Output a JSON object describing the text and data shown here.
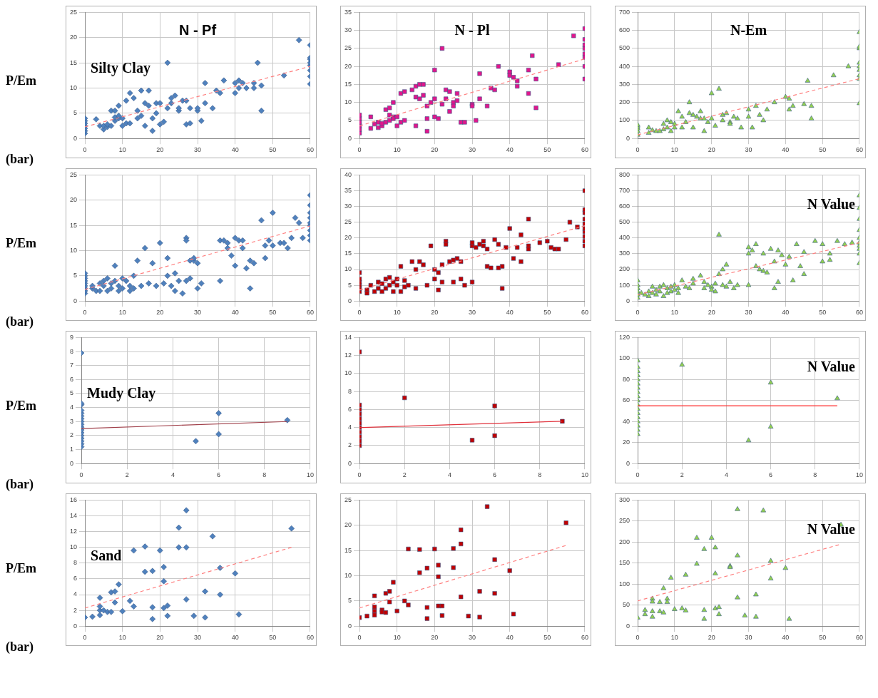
{
  "chart_data": [
    {
      "type": "scatter",
      "title": "N - Pf",
      "ylabel": "P/Em (bar)",
      "annotations": [
        "Silty Clay"
      ],
      "xlim": [
        0,
        60
      ],
      "xticks": [
        0,
        10,
        20,
        30,
        40,
        50,
        60
      ],
      "ylim": [
        0,
        25
      ],
      "yticks": [
        0,
        5,
        10,
        15,
        20,
        25
      ],
      "grid": true,
      "series": [
        {
          "type": "scatter",
          "color": "#4f81bd",
          "marker": "diamond",
          "x": [
            0,
            0,
            0,
            0,
            0,
            0,
            0,
            3,
            4,
            5,
            5,
            6,
            6,
            7,
            7,
            8,
            8,
            8,
            9,
            9,
            9,
            10,
            10,
            11,
            11,
            12,
            12,
            13,
            14,
            14,
            15,
            15,
            16,
            16,
            17,
            17,
            18,
            18,
            19,
            19,
            20,
            20,
            21,
            22,
            22,
            23,
            23,
            24,
            25,
            25,
            26,
            27,
            27,
            28,
            28,
            30,
            30,
            31,
            32,
            32,
            34,
            35,
            36,
            37,
            40,
            40,
            41,
            41,
            42,
            43,
            45,
            45,
            46,
            47,
            47,
            53,
            57,
            60,
            60,
            60,
            60,
            60,
            60,
            60,
            60
          ],
          "values": [
            1,
            1.5,
            2,
            2.5,
            3,
            3.5,
            4,
            3.8,
            2.5,
            1.8,
            2.5,
            2.3,
            2.8,
            2.5,
            5.5,
            3.5,
            4.2,
            5.5,
            4,
            4.5,
            6.5,
            2.5,
            4,
            3,
            7.5,
            3,
            9,
            8,
            4,
            5.5,
            9.5,
            4.5,
            2.5,
            7,
            6.5,
            9.5,
            4,
            1.5,
            5,
            7,
            2.8,
            7,
            3.3,
            15,
            6,
            7,
            8,
            8.5,
            5.5,
            6,
            7.5,
            2.8,
            7.5,
            3,
            6,
            5.5,
            6,
            3.5,
            11,
            7,
            6,
            9.5,
            9,
            11.5,
            9,
            11,
            10,
            11.5,
            11,
            10,
            10,
            11,
            15,
            5.5,
            10.5,
            12.5,
            19.5,
            10.8,
            12.3,
            13.5,
            14.5,
            15,
            15.7,
            16,
            18.5
          ]
        },
        {
          "type": "line",
          "color": "#ff8080",
          "line_style": "dashed",
          "marker": "none",
          "x": [
            0,
            60
          ],
          "values": [
            2.3,
            14.3
          ]
        }
      ]
    },
    {
      "type": "scatter",
      "title": "N - Pl",
      "xlim": [
        0,
        60
      ],
      "xticks": [
        0,
        10,
        20,
        30,
        40,
        50,
        60
      ],
      "ylim": [
        0,
        35
      ],
      "yticks": [
        0,
        5,
        10,
        15,
        20,
        25,
        30,
        35
      ],
      "grid": true,
      "series": [
        {
          "type": "scatter",
          "color": "#e0168c",
          "marker": "square",
          "x": [
            0,
            0,
            0,
            0,
            0,
            0,
            3,
            3,
            4,
            5,
            5,
            6,
            6,
            7,
            7,
            8,
            8,
            8,
            9,
            9,
            9,
            10,
            10,
            11,
            11,
            12,
            12,
            14,
            15,
            15,
            15,
            16,
            16,
            17,
            17,
            18,
            18,
            18,
            19,
            20,
            20,
            20,
            21,
            22,
            22,
            23,
            23,
            24,
            24,
            25,
            25,
            26,
            26,
            27,
            28,
            30,
            30,
            31,
            32,
            32,
            34,
            35,
            36,
            37,
            40,
            40,
            41,
            42,
            42,
            45,
            45,
            46,
            47,
            47,
            53,
            57,
            60,
            60,
            60,
            60,
            60,
            60,
            60,
            60
          ],
          "values": [
            1.5,
            2.5,
            3.5,
            4.5,
            5.5,
            6.5,
            6,
            2.8,
            4,
            3,
            4.5,
            3.5,
            4.2,
            4.5,
            8,
            5,
            6.5,
            8.5,
            6,
            5.5,
            10,
            3.5,
            6,
            4.5,
            12.5,
            5,
            13,
            13.5,
            3.5,
            11.5,
            14.5,
            11,
            15,
            12,
            15,
            2,
            9,
            5.5,
            10,
            19,
            11,
            6,
            5.5,
            25,
            9.5,
            13.5,
            11,
            13,
            7.5,
            10,
            9,
            10.5,
            12.5,
            4.5,
            4.5,
            9.5,
            9,
            5,
            18,
            11,
            9,
            14,
            13.5,
            20,
            18.5,
            17.5,
            17,
            14.5,
            16,
            19,
            12.5,
            23,
            8.5,
            16.5,
            20.5,
            28.5,
            16.5,
            20,
            22.5,
            23.5,
            25,
            26,
            27.5,
            30.5
          ]
        },
        {
          "type": "line",
          "color": "#ff8080",
          "line_style": "dashed",
          "marker": "none",
          "x": [
            0,
            60
          ],
          "values": [
            3.5,
            22.1
          ]
        }
      ]
    },
    {
      "type": "scatter",
      "title": "N-Em",
      "xlim": [
        0,
        60
      ],
      "xticks": [
        0,
        10,
        20,
        30,
        40,
        50,
        60
      ],
      "ylim": [
        0,
        700
      ],
      "yticks": [
        0,
        100,
        200,
        300,
        400,
        500,
        600,
        700
      ],
      "grid": true,
      "series": [
        {
          "type": "scatter",
          "color": "#92d050",
          "marker": "triangle",
          "x": [
            0,
            0,
            0,
            0,
            0,
            3,
            3,
            4,
            5,
            6,
            7,
            7,
            8,
            8,
            9,
            9,
            10,
            10,
            11,
            12,
            12,
            13,
            14,
            14,
            15,
            15,
            16,
            17,
            17,
            18,
            18,
            19,
            20,
            20,
            21,
            22,
            23,
            23,
            24,
            25,
            25,
            26,
            27,
            28,
            30,
            30,
            31,
            32,
            33,
            34,
            35,
            37,
            40,
            41,
            41,
            42,
            45,
            46,
            47,
            47,
            53,
            57,
            60,
            60,
            60,
            60,
            60,
            60,
            60,
            60,
            60
          ],
          "values": [
            20,
            40,
            55,
            65,
            75,
            60,
            30,
            45,
            40,
            40,
            50,
            80,
            100,
            60,
            90,
            40,
            60,
            80,
            150,
            120,
            60,
            90,
            200,
            140,
            130,
            60,
            120,
            110,
            150,
            40,
            110,
            90,
            110,
            250,
            70,
            275,
            130,
            100,
            140,
            90,
            80,
            120,
            110,
            60,
            160,
            120,
            60,
            180,
            130,
            100,
            160,
            200,
            230,
            220,
            160,
            180,
            190,
            320,
            180,
            110,
            350,
            400,
            195,
            330,
            350,
            380,
            400,
            420,
            500,
            510,
            590
          ]
        },
        {
          "type": "line",
          "color": "#ff8080",
          "line_style": "dashed",
          "marker": "none",
          "x": [
            0,
            60
          ],
          "values": [
            20,
            332
          ]
        }
      ]
    },
    {
      "type": "scatter",
      "ylabel": "P/Em (bar)",
      "xlim": [
        0,
        60
      ],
      "xticks": [
        0,
        10,
        20,
        30,
        40,
        50,
        60
      ],
      "ylim": [
        0,
        25
      ],
      "yticks": [
        0,
        5,
        10,
        15,
        20,
        25
      ],
      "grid": true,
      "series": [
        {
          "type": "scatter",
          "color": "#4f81bd",
          "marker": "diamond",
          "x": [
            0,
            0,
            0,
            0,
            0,
            0,
            0,
            0,
            0,
            2,
            2,
            3,
            4,
            4,
            5,
            5,
            6,
            6,
            7,
            7,
            8,
            8,
            9,
            9,
            10,
            10,
            11,
            12,
            12,
            13,
            13,
            14,
            15,
            16,
            17,
            18,
            19,
            20,
            21,
            22,
            22,
            23,
            24,
            24,
            25,
            26,
            27,
            27,
            27,
            28,
            28,
            29,
            29,
            30,
            30,
            31,
            36,
            36,
            37,
            38,
            38,
            39,
            40,
            40,
            41,
            42,
            42,
            43,
            44,
            44,
            45,
            47,
            48,
            48,
            49,
            50,
            50,
            52,
            53,
            54,
            55,
            56,
            57,
            58,
            60,
            60,
            60,
            60,
            60,
            60,
            60,
            60,
            60
          ],
          "values": [
            1.5,
            2,
            2.5,
            3,
            3.5,
            4,
            4.5,
            5,
            5.5,
            2.5,
            3,
            2,
            3.5,
            2,
            4,
            3,
            4.5,
            2,
            3.5,
            2.5,
            4,
            7,
            2,
            3,
            4.5,
            2.5,
            4,
            2,
            3,
            2.5,
            5,
            8,
            3,
            10.5,
            3.5,
            7.5,
            3,
            11.5,
            3.5,
            5,
            8.5,
            3,
            2,
            5.5,
            4,
            1.5,
            4,
            12.5,
            12,
            8,
            4.5,
            8,
            8.5,
            2.5,
            7.5,
            3.5,
            4,
            12,
            12,
            10.5,
            11.5,
            9,
            12.5,
            7,
            12,
            10.5,
            12,
            6.5,
            2.5,
            8,
            7.5,
            16,
            11,
            8.5,
            12,
            17.5,
            11,
            11.5,
            11.5,
            10.5,
            12.5,
            16.5,
            15.5,
            12.5,
            12,
            13,
            14,
            15,
            15.5,
            16.5,
            17.5,
            19,
            21
          ]
        },
        {
          "type": "line",
          "color": "#ff8080",
          "line_style": "dashed",
          "marker": "none",
          "x": [
            0,
            60
          ],
          "values": [
            2.3,
            14.9
          ]
        }
      ]
    },
    {
      "type": "scatter",
      "xlim": [
        0,
        60
      ],
      "xticks": [
        0,
        10,
        20,
        30,
        40,
        50,
        60
      ],
      "ylim": [
        0,
        40
      ],
      "yticks": [
        0,
        5,
        10,
        15,
        20,
        25,
        30,
        35,
        40
      ],
      "grid": true,
      "series": [
        {
          "type": "scatter",
          "color": "#c00000",
          "marker": "square",
          "x": [
            0,
            0,
            0,
            0,
            0,
            0,
            2,
            2,
            3,
            4,
            5,
            5,
            6,
            6,
            7,
            7,
            8,
            8,
            9,
            9,
            10,
            10,
            11,
            11,
            12,
            12,
            13,
            14,
            15,
            15,
            16,
            17,
            18,
            19,
            20,
            20,
            21,
            21,
            22,
            22,
            23,
            23,
            24,
            25,
            25,
            26,
            27,
            27,
            28,
            30,
            30,
            30,
            31,
            32,
            33,
            33,
            34,
            34,
            35,
            36,
            37,
            37,
            38,
            38,
            39,
            40,
            41,
            42,
            43,
            43,
            45,
            45,
            45,
            48,
            50,
            51,
            52,
            53,
            55,
            56,
            58,
            60,
            60,
            60,
            60,
            60,
            60,
            60,
            60,
            60,
            60
          ],
          "values": [
            3,
            4,
            5,
            6,
            7,
            9,
            3.5,
            2.5,
            5,
            3,
            4,
            6,
            3,
            5.5,
            7,
            4,
            5,
            7.5,
            3,
            6,
            5,
            7,
            3,
            11,
            4.5,
            6.5,
            5,
            12.5,
            4,
            10,
            12.5,
            11.5,
            5,
            17.5,
            10,
            7,
            9,
            3.5,
            6,
            11.5,
            19,
            18,
            12.5,
            13,
            6,
            13.5,
            7,
            12.5,
            5,
            6,
            17.5,
            18.5,
            17,
            18,
            17.5,
            19,
            16.5,
            11,
            10.5,
            19.5,
            18,
            10.5,
            4,
            11,
            17,
            23,
            13.5,
            17,
            12.5,
            21,
            26,
            17.5,
            16.5,
            18.5,
            19,
            17,
            16.5,
            16.5,
            19.5,
            25,
            23.5,
            17.5,
            19,
            20.5,
            22,
            23,
            24.5,
            26,
            28,
            29,
            35
          ]
        },
        {
          "type": "line",
          "color": "#ff8080",
          "line_style": "dashed",
          "marker": "none",
          "x": [
            0,
            60
          ],
          "values": [
            3.5,
            23.9
          ]
        }
      ]
    },
    {
      "type": "scatter",
      "annotations": [
        "N Value"
      ],
      "xlim": [
        0,
        60
      ],
      "xticks": [
        0,
        10,
        20,
        30,
        40,
        50,
        60
      ],
      "ylim": [
        0,
        800
      ],
      "yticks": [
        0,
        100,
        200,
        300,
        400,
        500,
        600,
        700,
        800
      ],
      "grid": true,
      "series": [
        {
          "type": "scatter",
          "color": "#92d050",
          "marker": "triangle",
          "x": [
            0,
            0,
            0,
            0,
            0,
            0,
            1,
            2,
            3,
            3,
            4,
            4,
            5,
            5,
            6,
            6,
            7,
            7,
            8,
            8,
            9,
            9,
            10,
            10,
            11,
            11,
            12,
            13,
            14,
            15,
            15,
            17,
            18,
            18,
            19,
            20,
            20,
            21,
            21,
            22,
            22,
            23,
            23,
            24,
            24,
            25,
            26,
            27,
            30,
            30,
            30,
            31,
            32,
            32,
            33,
            34,
            34,
            35,
            36,
            37,
            37,
            38,
            38,
            39,
            40,
            41,
            42,
            43,
            44,
            45,
            45,
            48,
            50,
            50,
            52,
            52,
            54,
            56,
            58,
            60,
            60,
            60,
            60,
            60,
            60,
            60,
            60,
            60,
            60
          ],
          "values": [
            20,
            40,
            60,
            80,
            100,
            130,
            50,
            40,
            30,
            60,
            50,
            90,
            70,
            40,
            90,
            60,
            100,
            30,
            80,
            50,
            90,
            60,
            100,
            70,
            80,
            50,
            130,
            90,
            80,
            110,
            140,
            160,
            120,
            80,
            100,
            90,
            70,
            60,
            110,
            170,
            420,
            200,
            100,
            230,
            90,
            120,
            80,
            100,
            100,
            340,
            300,
            320,
            220,
            360,
            200,
            300,
            190,
            180,
            330,
            80,
            250,
            120,
            320,
            290,
            230,
            280,
            130,
            360,
            220,
            170,
            310,
            380,
            250,
            360,
            300,
            260,
            380,
            360,
            370,
            240,
            300,
            330,
            350,
            370,
            400,
            450,
            520,
            590,
            670
          ]
        },
        {
          "type": "line",
          "color": "#ff8080",
          "line_style": "dashed",
          "marker": "none",
          "x": [
            0,
            60
          ],
          "values": [
            40,
            370
          ]
        }
      ]
    },
    {
      "type": "scatter",
      "ylabel": "P/Em (bar)",
      "annotations": [
        "Mudy Clay"
      ],
      "xlim": [
        0,
        10
      ],
      "xticks": [
        0,
        2,
        4,
        6,
        8,
        10
      ],
      "ylim": [
        0,
        9
      ],
      "yticks": [
        0,
        1,
        2,
        3,
        4,
        5,
        6,
        7,
        8,
        9
      ],
      "grid": true,
      "series": [
        {
          "type": "scatter",
          "color": "#4f81bd",
          "marker": "diamond",
          "x": [
            0,
            0,
            0,
            0,
            0,
            0,
            0,
            0,
            0,
            0,
            0,
            0,
            0,
            0,
            0,
            0,
            0,
            5,
            6,
            6,
            9
          ],
          "values": [
            1.2,
            1.4,
            1.6,
            1.8,
            2,
            2.2,
            2.4,
            2.6,
            2.8,
            3,
            3.2,
            3.4,
            3.6,
            3.8,
            4.2,
            4.3,
            7.9,
            1.6,
            3.6,
            2.1,
            3.1
          ]
        },
        {
          "type": "line",
          "color": "#a0404a",
          "line_style": "solid",
          "marker": "none",
          "x": [
            0,
            9
          ],
          "values": [
            2.5,
            3
          ]
        }
      ]
    },
    {
      "type": "scatter",
      "xlim": [
        0,
        10
      ],
      "xticks": [
        0,
        2,
        4,
        6,
        8,
        10
      ],
      "ylim": [
        0,
        14
      ],
      "yticks": [
        0,
        2,
        4,
        6,
        8,
        10,
        12,
        14
      ],
      "grid": true,
      "series": [
        {
          "type": "scatter",
          "color": "#c00000",
          "marker": "square",
          "x": [
            0,
            0,
            0,
            0,
            0,
            0,
            0,
            0,
            0,
            0,
            0,
            2,
            5,
            6,
            6,
            9
          ],
          "values": [
            2,
            2.5,
            3,
            3.5,
            4,
            4.5,
            5,
            5.5,
            6,
            6.5,
            12.4,
            7.3,
            2.6,
            6.4,
            3.1,
            4.7
          ]
        },
        {
          "type": "line",
          "color": "#e0303a",
          "line_style": "solid",
          "marker": "none",
          "x": [
            0,
            9
          ],
          "values": [
            4,
            4.7
          ]
        }
      ]
    },
    {
      "type": "scatter",
      "annotations": [
        "N Value"
      ],
      "xlim": [
        0,
        10
      ],
      "xticks": [
        0,
        2,
        4,
        6,
        8,
        10
      ],
      "ylim": [
        0,
        120
      ],
      "yticks": [
        0,
        20,
        40,
        60,
        80,
        100,
        120
      ],
      "grid": true,
      "series": [
        {
          "type": "scatter",
          "color": "#92d050",
          "marker": "triangle",
          "x": [
            0,
            0,
            0,
            0,
            0,
            0,
            0,
            0,
            0,
            0,
            0,
            0,
            0,
            0,
            0,
            0,
            0,
            0,
            2,
            5,
            6,
            6,
            9
          ],
          "values": [
            28,
            32,
            36,
            40,
            44,
            48,
            52,
            56,
            60,
            64,
            68,
            72,
            76,
            80,
            84,
            88,
            92,
            98,
            94,
            22,
            77,
            35,
            62
          ]
        },
        {
          "type": "line",
          "color": "#ff3030",
          "line_style": "solid",
          "marker": "none",
          "x": [
            0,
            9
          ],
          "values": [
            55,
            55
          ]
        }
      ]
    },
    {
      "type": "scatter",
      "ylabel": "P/Em (bar)",
      "annotations": [
        "Sand"
      ],
      "xlim": [
        0,
        60
      ],
      "xticks": [
        0,
        10,
        20,
        30,
        40,
        50,
        60
      ],
      "ylim": [
        0,
        16
      ],
      "yticks": [
        0,
        2,
        4,
        6,
        8,
        10,
        12,
        14,
        16
      ],
      "grid": true,
      "series": [
        {
          "type": "scatter",
          "color": "#4f81bd",
          "marker": "diamond",
          "x": [
            0,
            2,
            4,
            4,
            4,
            4,
            5,
            6,
            7,
            7,
            8,
            8,
            9,
            10,
            12,
            13,
            13,
            16,
            16,
            18,
            18,
            18,
            20,
            21,
            21,
            21,
            22,
            22,
            25,
            25,
            27,
            27,
            27,
            29,
            32,
            32,
            34,
            36,
            36,
            40,
            41,
            55
          ],
          "values": [
            1.1,
            1.2,
            1.4,
            2,
            2.5,
            3.6,
            2,
            1.8,
            4.3,
            1.8,
            4.4,
            3,
            5.3,
            1.9,
            3.2,
            2.5,
            9.6,
            10.1,
            6.9,
            7,
            2.4,
            0.9,
            9.6,
            7.5,
            5.7,
            2.3,
            2.6,
            1.3,
            12.5,
            10,
            14.7,
            10,
            3.4,
            1.3,
            4.4,
            1.1,
            11.4,
            7.4,
            4,
            6.7,
            1.5,
            12.4
          ]
        },
        {
          "type": "line",
          "color": "#ff8080",
          "line_style": "dashed",
          "marker": "none",
          "x": [
            0,
            55
          ],
          "values": [
            2.3,
            10
          ]
        }
      ]
    },
    {
      "type": "scatter",
      "xlim": [
        0,
        60
      ],
      "xticks": [
        0,
        10,
        20,
        30,
        40,
        50,
        60
      ],
      "ylim": [
        0,
        25
      ],
      "yticks": [
        0,
        5,
        10,
        15,
        20,
        25
      ],
      "grid": true,
      "series": [
        {
          "type": "scatter",
          "color": "#c00000",
          "marker": "square",
          "x": [
            0,
            2,
            4,
            4,
            4,
            4,
            6,
            6,
            7,
            7,
            8,
            8,
            9,
            10,
            12,
            13,
            13,
            16,
            16,
            18,
            18,
            18,
            20,
            21,
            21,
            21,
            22,
            22,
            25,
            25,
            27,
            27,
            27,
            29,
            32,
            32,
            34,
            36,
            36,
            40,
            41,
            55
          ],
          "values": [
            1.7,
            2,
            6,
            3.8,
            3,
            2.2,
            3.2,
            2.8,
            6.5,
            2.7,
            6.9,
            4.8,
            8.7,
            3,
            5,
            15.3,
            4.2,
            15.2,
            10.6,
            11.5,
            3.7,
            1.5,
            15.3,
            12.1,
            9.8,
            4,
            4,
            2.1,
            15.4,
            11.6,
            19.1,
            16.3,
            5.8,
            2,
            6.9,
            1.8,
            23.7,
            13.2,
            6.5,
            11,
            2.4,
            20.5
          ]
        },
        {
          "type": "line",
          "color": "#ff8080",
          "line_style": "dashed",
          "marker": "none",
          "x": [
            0,
            55
          ],
          "values": [
            3.6,
            16
          ]
        }
      ]
    },
    {
      "type": "scatter",
      "annotations": [
        "N Value"
      ],
      "xlim": [
        0,
        60
      ],
      "xticks": [
        0,
        10,
        20,
        30,
        40,
        50,
        60
      ],
      "ylim": [
        0,
        300
      ],
      "yticks": [
        0,
        50,
        100,
        150,
        200,
        250,
        300
      ],
      "grid": true,
      "series": [
        {
          "type": "scatter",
          "color": "#92d050",
          "marker": "triangle",
          "x": [
            0,
            2,
            2,
            4,
            4,
            4,
            4,
            6,
            6,
            7,
            7,
            8,
            8,
            9,
            10,
            12,
            13,
            13,
            16,
            16,
            18,
            18,
            18,
            20,
            21,
            21,
            21,
            22,
            22,
            25,
            25,
            27,
            27,
            27,
            29,
            32,
            32,
            34,
            36,
            36,
            40,
            41,
            55
          ],
          "values": [
            20,
            38,
            28,
            65,
            58,
            35,
            22,
            57,
            35,
            90,
            32,
            65,
            57,
            115,
            40,
            42,
            122,
            37,
            210,
            148,
            183,
            38,
            17,
            210,
            187,
            125,
            42,
            45,
            28,
            143,
            140,
            278,
            168,
            68,
            25,
            75,
            22,
            275,
            155,
            113,
            138,
            17,
            241
          ]
        },
        {
          "type": "line",
          "color": "#ff8080",
          "line_style": "dashed",
          "marker": "none",
          "x": [
            0,
            55
          ],
          "values": [
            60,
            195
          ]
        }
      ]
    }
  ]
}
